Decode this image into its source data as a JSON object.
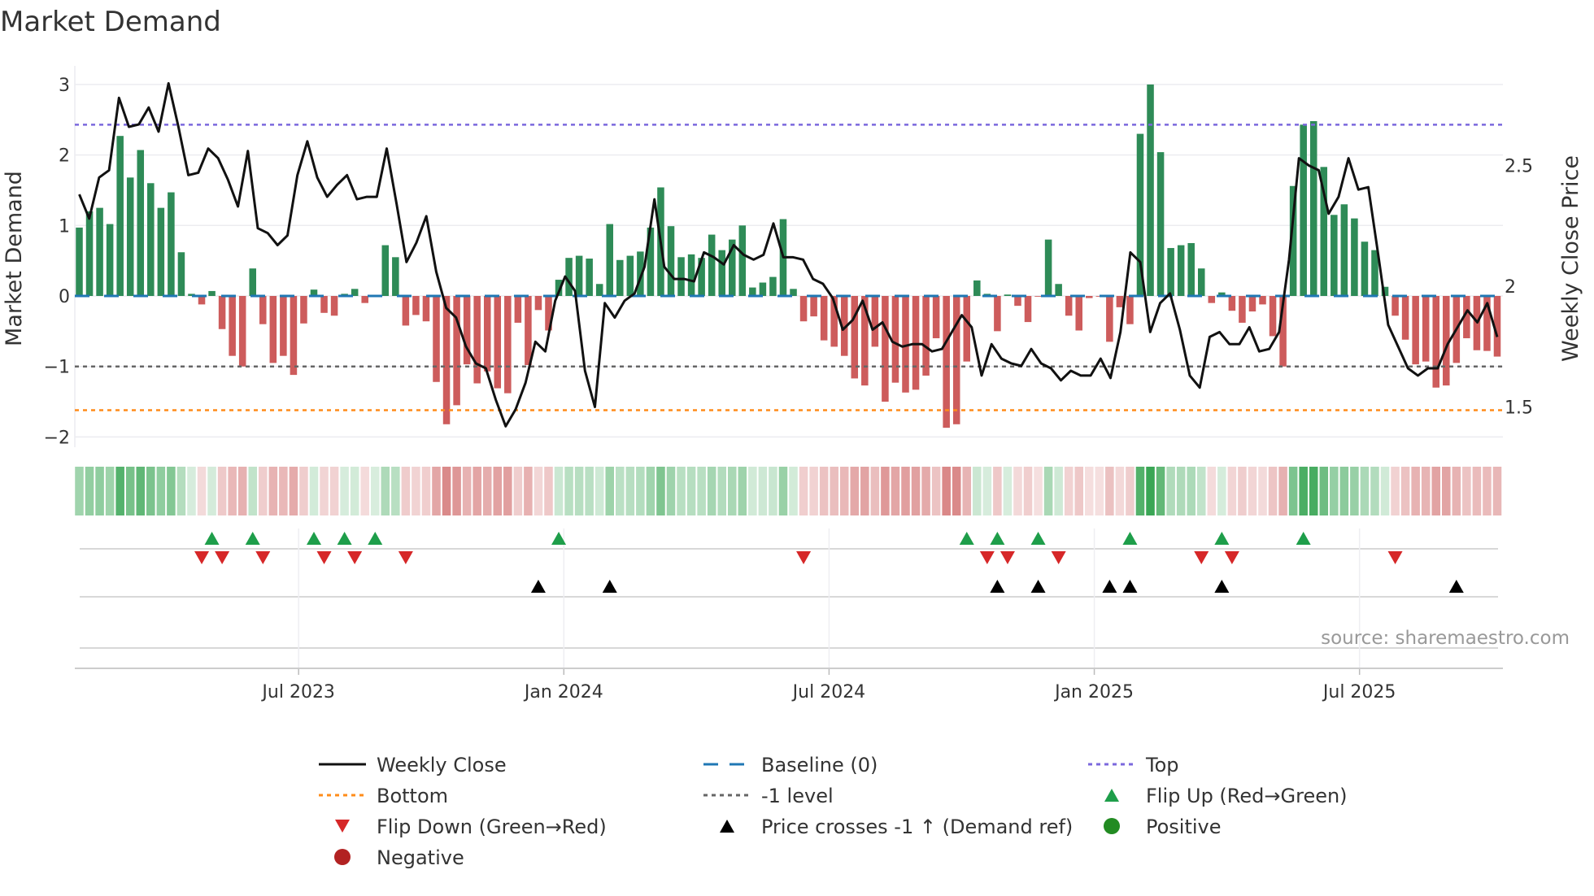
{
  "chart_data": {
    "type": "bar",
    "title": "Market Demand",
    "ylabel": "Market Demand",
    "y2label": "Weekly Close Price",
    "ylim": [
      -2.15,
      3.35
    ],
    "y2lim": [
      1.35,
      2.87
    ],
    "yticks": [
      "3",
      "2",
      "1",
      "0",
      "−1",
      "−2"
    ],
    "ytick_values": [
      3,
      2,
      1,
      0,
      -1,
      -2
    ],
    "y2ticks": [
      "2.5",
      "2",
      "1.5"
    ],
    "y2tick_values": [
      2.5,
      2,
      1.5
    ],
    "xticks": [
      "Jul 2023",
      "Jan 2024",
      "Jul 2024",
      "Jan 2025",
      "Jul 2025"
    ],
    "xtick_week_index": [
      21.5,
      47.5,
      73.5,
      99.5,
      125.5
    ],
    "levels": {
      "top": 2.43,
      "bottom": -1.62,
      "minus_one": -1,
      "baseline": 0
    },
    "demand": [
      0.97,
      1.2,
      1.25,
      1.02,
      2.27,
      1.68,
      2.07,
      1.6,
      1.25,
      1.47,
      0.62,
      0.03,
      -0.12,
      0.07,
      -0.47,
      -0.85,
      -1.0,
      0.39,
      -0.4,
      -0.95,
      -0.85,
      -1.12,
      -0.39,
      0.09,
      -0.24,
      -0.28,
      0.03,
      0.1,
      -0.1,
      0,
      0.72,
      0.55,
      -0.42,
      -0.27,
      -0.36,
      -1.22,
      -1.82,
      -1.55,
      -0.97,
      -1.24,
      -1.07,
      -1.31,
      -1.38,
      -0.38,
      -0.98,
      -0.2,
      -0.49,
      0.23,
      0.54,
      0.57,
      0.53,
      0.17,
      1.02,
      0.51,
      0.57,
      0.63,
      0.97,
      1.54,
      0.99,
      0.55,
      0.59,
      0.54,
      0.87,
      0.65,
      0.8,
      1.0,
      0.12,
      0.19,
      0.27,
      1.09,
      0.1,
      -0.36,
      -0.29,
      -0.63,
      -0.72,
      -0.85,
      -1.17,
      -1.27,
      -0.72,
      -1.5,
      -1.23,
      -1.37,
      -1.33,
      -1.13,
      -0.6,
      -1.87,
      -1.82,
      -0.93,
      0.22,
      0.03,
      -0.5,
      0.02,
      -0.14,
      -0.37,
      -0.01,
      0.8,
      0.17,
      -0.28,
      -0.49,
      -0.03,
      -0.01,
      -0.65,
      -0.16,
      -0.4,
      2.3,
      3.0,
      2.04,
      0.68,
      0.72,
      0.75,
      0.39,
      -0.1,
      0.05,
      -0.21,
      -0.38,
      -0.22,
      -0.12,
      -0.57,
      -1.0,
      1.56,
      2.43,
      2.48,
      1.83,
      1.15,
      1.3,
      1.1,
      0.77,
      0.65,
      0.13,
      -0.28,
      -0.62,
      -0.97,
      -0.93,
      -1.3,
      -1.27,
      -0.95,
      -0.6,
      -0.77,
      -0.78,
      -0.86
    ],
    "weekly_close": [
      2.38,
      2.28,
      2.45,
      2.48,
      2.78,
      2.66,
      2.67,
      2.74,
      2.64,
      2.84,
      2.66,
      2.46,
      2.47,
      2.57,
      2.53,
      2.44,
      2.33,
      2.56,
      2.24,
      2.22,
      2.17,
      2.21,
      2.46,
      2.6,
      2.45,
      2.37,
      2.42,
      2.46,
      2.36,
      2.37,
      2.37,
      2.57,
      2.34,
      2.1,
      2.18,
      2.29,
      2.06,
      1.91,
      1.87,
      1.75,
      1.68,
      1.66,
      1.53,
      1.42,
      1.49,
      1.6,
      1.77,
      1.73,
      1.94,
      2.04,
      1.98,
      1.65,
      1.5,
      1.93,
      1.87,
      1.94,
      1.97,
      2.08,
      2.36,
      2.08,
      2.03,
      2.03,
      2.02,
      2.14,
      2.12,
      2.09,
      2.17,
      2.13,
      2.11,
      2.13,
      2.26,
      2.12,
      2.12,
      2.11,
      2.03,
      2.01,
      1.95,
      1.82,
      1.86,
      1.94,
      1.82,
      1.85,
      1.77,
      1.75,
      1.76,
      1.76,
      1.73,
      1.74,
      1.81,
      1.88,
      1.83,
      1.63,
      1.76,
      1.7,
      1.68,
      1.67,
      1.74,
      1.68,
      1.66,
      1.61,
      1.65,
      1.63,
      1.63,
      1.7,
      1.62,
      1.81,
      2.14,
      2.1,
      1.81,
      1.93,
      1.97,
      1.82,
      1.63,
      1.58,
      1.79,
      1.81,
      1.76,
      1.76,
      1.83,
      1.73,
      1.74,
      1.81,
      2.11,
      2.53,
      2.5,
      2.48,
      2.3,
      2.37,
      2.53,
      2.4,
      2.41,
      2.13,
      1.84,
      1.75,
      1.66,
      1.63,
      1.66,
      1.66,
      1.76,
      1.83,
      1.9,
      1.85,
      1.93,
      1.79
    ],
    "flip_up_week_index": [
      13,
      17,
      23,
      26,
      29,
      47,
      87,
      90,
      94,
      103,
      112,
      120
    ],
    "flip_down_week_index": [
      12,
      14,
      18,
      24,
      27,
      32,
      71,
      89,
      91,
      96,
      110,
      113,
      129
    ],
    "price_cross_week_index": [
      45,
      52,
      90,
      94,
      101,
      103,
      112,
      135
    ],
    "legend": [
      {
        "label": "Weekly Close",
        "style": "line",
        "color": "#111111"
      },
      {
        "label": "Baseline (0)",
        "style": "dash",
        "color": "#1f77b4"
      },
      {
        "label": "Top",
        "style": "dot",
        "color": "#7b68dd"
      },
      {
        "label": "Bottom",
        "style": "dot",
        "color": "#ff8c1a"
      },
      {
        "label": "-1 level",
        "style": "dot",
        "color": "#666666"
      },
      {
        "label": "Flip Up (Red→Green)",
        "style": "tri-up",
        "color": "#1e9e4a"
      },
      {
        "label": "Flip Down (Green→Red)",
        "style": "tri-down",
        "color": "#d62728"
      },
      {
        "label": "Price crosses -1 ↑ (Demand ref)",
        "style": "tri-up",
        "color": "#000000"
      },
      {
        "label": "Positive",
        "style": "circle",
        "color": "#228b22"
      },
      {
        "label": "Negative",
        "style": "circle",
        "color": "#b22222"
      }
    ],
    "legend_placement": "bottom",
    "source": "source: sharemaestro.com",
    "colors": {
      "positive_bar": "#2e8b57",
      "negative_bar": "#cd5c5c",
      "heat_pos": "#3aa655",
      "heat_neg": "#cd6060"
    }
  }
}
